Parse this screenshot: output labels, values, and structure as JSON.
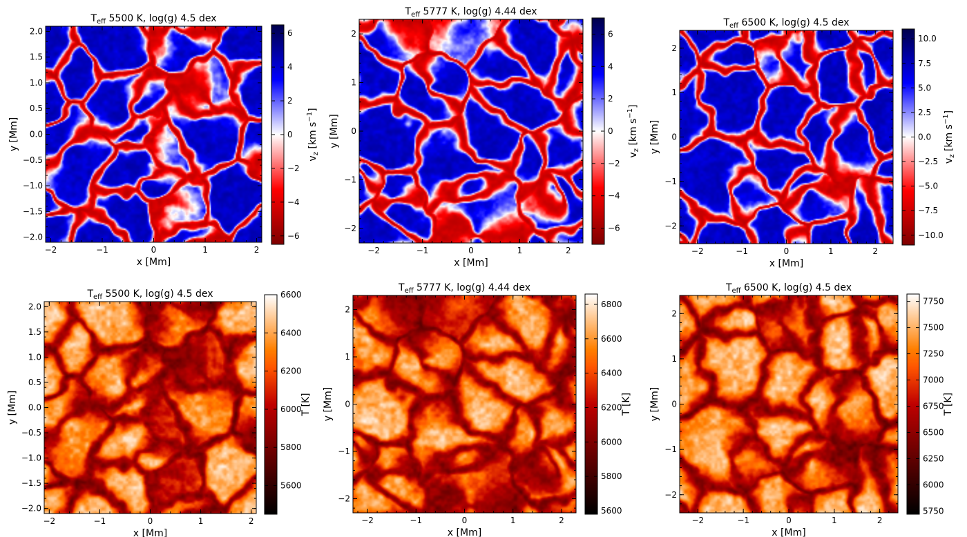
{
  "chart_data": [
    {
      "type": "heatmap",
      "title": {
        "prefix": "T",
        "sub": "eff",
        "rest": " 5500 K, log(g) 4.5 dex"
      },
      "xlabel": "x [Mm]",
      "ylabel": "y [Mm]",
      "xlim": [
        -2.1,
        2.1
      ],
      "ylim": [
        -2.1,
        2.1
      ],
      "xticks": [
        -2,
        -1,
        0,
        1,
        2
      ],
      "yticks": [
        -2.0,
        -1.5,
        -1.0,
        -0.5,
        0.0,
        0.5,
        1.0,
        1.5,
        2.0
      ],
      "xtick_labels": [
        "−2",
        "−1",
        "0",
        "1",
        "2"
      ],
      "ytick_labels": [
        "−2.0",
        "−1.5",
        "−1.0",
        "−0.5",
        "0.0",
        "0.5",
        "1.0",
        "1.5",
        "2.0"
      ],
      "colorbar": {
        "label": "v",
        "label_sub": "z",
        "label_rest": " [km s",
        "label_sup": "−1",
        "label_end": "]",
        "range": [
          -6.5,
          6.5
        ],
        "ticks": [
          -6,
          -4,
          -2,
          0,
          2,
          4,
          6
        ],
        "tick_labels": [
          "−6",
          "−4",
          "−2",
          "0",
          "2",
          "4",
          "6"
        ],
        "cmap": "seismic"
      },
      "field": "vz",
      "seed": 11
    },
    {
      "type": "heatmap",
      "title": {
        "prefix": "T",
        "sub": "eff",
        "rest": " 5777 K, log(g) 4.44 dex"
      },
      "xlabel": "x [Mm]",
      "ylabel": "y [Mm]",
      "xlim": [
        -2.3,
        2.3
      ],
      "ylim": [
        -2.3,
        2.3
      ],
      "xticks": [
        -2,
        -1,
        0,
        1,
        2
      ],
      "yticks": [
        -2,
        -1,
        0,
        1,
        2
      ],
      "xtick_labels": [
        "−2",
        "−1",
        "0",
        "1",
        "2"
      ],
      "ytick_labels": [
        "−2",
        "−1",
        "0",
        "1",
        "2"
      ],
      "colorbar": {
        "label": "v",
        "label_sub": "z",
        "label_rest": " [km s",
        "label_sup": "−1",
        "label_end": "]",
        "range": [
          -7.0,
          7.0
        ],
        "ticks": [
          -6,
          -4,
          -2,
          0,
          2,
          4,
          6
        ],
        "tick_labels": [
          "−6",
          "−4",
          "−2",
          "0",
          "2",
          "4",
          "6"
        ],
        "cmap": "seismic"
      },
      "field": "vz",
      "seed": 23
    },
    {
      "type": "heatmap",
      "title": {
        "prefix": "T",
        "sub": "eff",
        "rest": " 6500 K, log(g) 4.5 dex"
      },
      "xlabel": "x [Mm]",
      "ylabel": "y [Mm]",
      "xlim": [
        -2.4,
        2.4
      ],
      "ylim": [
        -2.4,
        2.4
      ],
      "xticks": [
        -2,
        -1,
        0,
        1,
        2
      ],
      "yticks": [
        -2,
        -1,
        0,
        1,
        2
      ],
      "xtick_labels": [
        "−2",
        "−1",
        "0",
        "1",
        "2"
      ],
      "ytick_labels": [
        "−2",
        "−1",
        "0",
        "1",
        "2"
      ],
      "colorbar": {
        "label": "v",
        "label_sub": "z",
        "label_rest": " [km s",
        "label_sup": "−1",
        "label_end": "]",
        "range": [
          -11.0,
          11.0
        ],
        "ticks": [
          -10,
          -7.5,
          -5,
          -2.5,
          0,
          2.5,
          5,
          7.5,
          10
        ],
        "tick_labels": [
          "−10.0",
          "−7.5",
          "−5.0",
          "−2.5",
          "0.0",
          "2.5",
          "5.0",
          "7.5",
          "10.0"
        ],
        "cmap": "seismic"
      },
      "field": "vz",
      "seed": 37
    },
    {
      "type": "heatmap",
      "title": {
        "prefix": "T",
        "sub": "eff",
        "rest": " 5500 K, log(g) 4.5 dex"
      },
      "xlabel": "x [Mm]",
      "ylabel": "y [Mm]",
      "xlim": [
        -2.1,
        2.1
      ],
      "ylim": [
        -2.1,
        2.1
      ],
      "xticks": [
        -2,
        -1,
        0,
        1,
        2
      ],
      "yticks": [
        -2.0,
        -1.5,
        -1.0,
        -0.5,
        0.0,
        0.5,
        1.0,
        1.5,
        2.0
      ],
      "xtick_labels": [
        "−2",
        "−1",
        "0",
        "1",
        "2"
      ],
      "ytick_labels": [
        "−2.0",
        "−1.5",
        "−1.0",
        "−0.5",
        "0.0",
        "0.5",
        "1.0",
        "1.5",
        "2.0"
      ],
      "colorbar": {
        "label": "T [K]",
        "range": [
          5450,
          6600
        ],
        "ticks": [
          5600,
          5800,
          6000,
          6200,
          6400,
          6600
        ],
        "tick_labels": [
          "5600",
          "5800",
          "6000",
          "6200",
          "6400",
          "6600"
        ],
        "cmap": "gist_heat"
      },
      "field": "T",
      "seed": 11
    },
    {
      "type": "heatmap",
      "title": {
        "prefix": "T",
        "sub": "eff",
        "rest": " 5777 K, log(g) 4.44 dex"
      },
      "xlabel": "x [Mm]",
      "ylabel": "y [Mm]",
      "xlim": [
        -2.3,
        2.3
      ],
      "ylim": [
        -2.3,
        2.3
      ],
      "xticks": [
        -2,
        -1,
        0,
        1,
        2
      ],
      "yticks": [
        -2,
        -1,
        0,
        1,
        2
      ],
      "xtick_labels": [
        "−2",
        "−1",
        "0",
        "1",
        "2"
      ],
      "ytick_labels": [
        "−2",
        "−1",
        "0",
        "1",
        "2"
      ],
      "colorbar": {
        "label": "T [K]",
        "range": [
          5580,
          6860
        ],
        "ticks": [
          5600,
          5800,
          6000,
          6200,
          6400,
          6600,
          6800
        ],
        "tick_labels": [
          "5600",
          "5800",
          "6000",
          "6200",
          "6400",
          "6600",
          "6800"
        ],
        "cmap": "gist_heat"
      },
      "field": "T",
      "seed": 23
    },
    {
      "type": "heatmap",
      "title": {
        "prefix": "T",
        "sub": "eff",
        "rest": " 6500 K, log(g) 4.5 dex"
      },
      "xlabel": "x [Mm]",
      "ylabel": "y [Mm]",
      "xlim": [
        -2.4,
        2.4
      ],
      "ylim": [
        -2.4,
        2.4
      ],
      "xticks": [
        -2,
        -1,
        0,
        1,
        2
      ],
      "yticks": [
        -2,
        -1,
        0,
        1,
        2
      ],
      "xtick_labels": [
        "−2",
        "−1",
        "0",
        "1",
        "2"
      ],
      "ytick_labels": [
        "−2",
        "−1",
        "0",
        "1",
        "2"
      ],
      "colorbar": {
        "label": "T [K]",
        "range": [
          5720,
          7820
        ],
        "ticks": [
          5750,
          6000,
          6250,
          6500,
          6750,
          7000,
          7250,
          7500,
          7750
        ],
        "tick_labels": [
          "5750",
          "6000",
          "6250",
          "6500",
          "6750",
          "7000",
          "7250",
          "7500",
          "7750"
        ],
        "cmap": "gist_heat"
      },
      "field": "T",
      "seed": 37
    }
  ]
}
